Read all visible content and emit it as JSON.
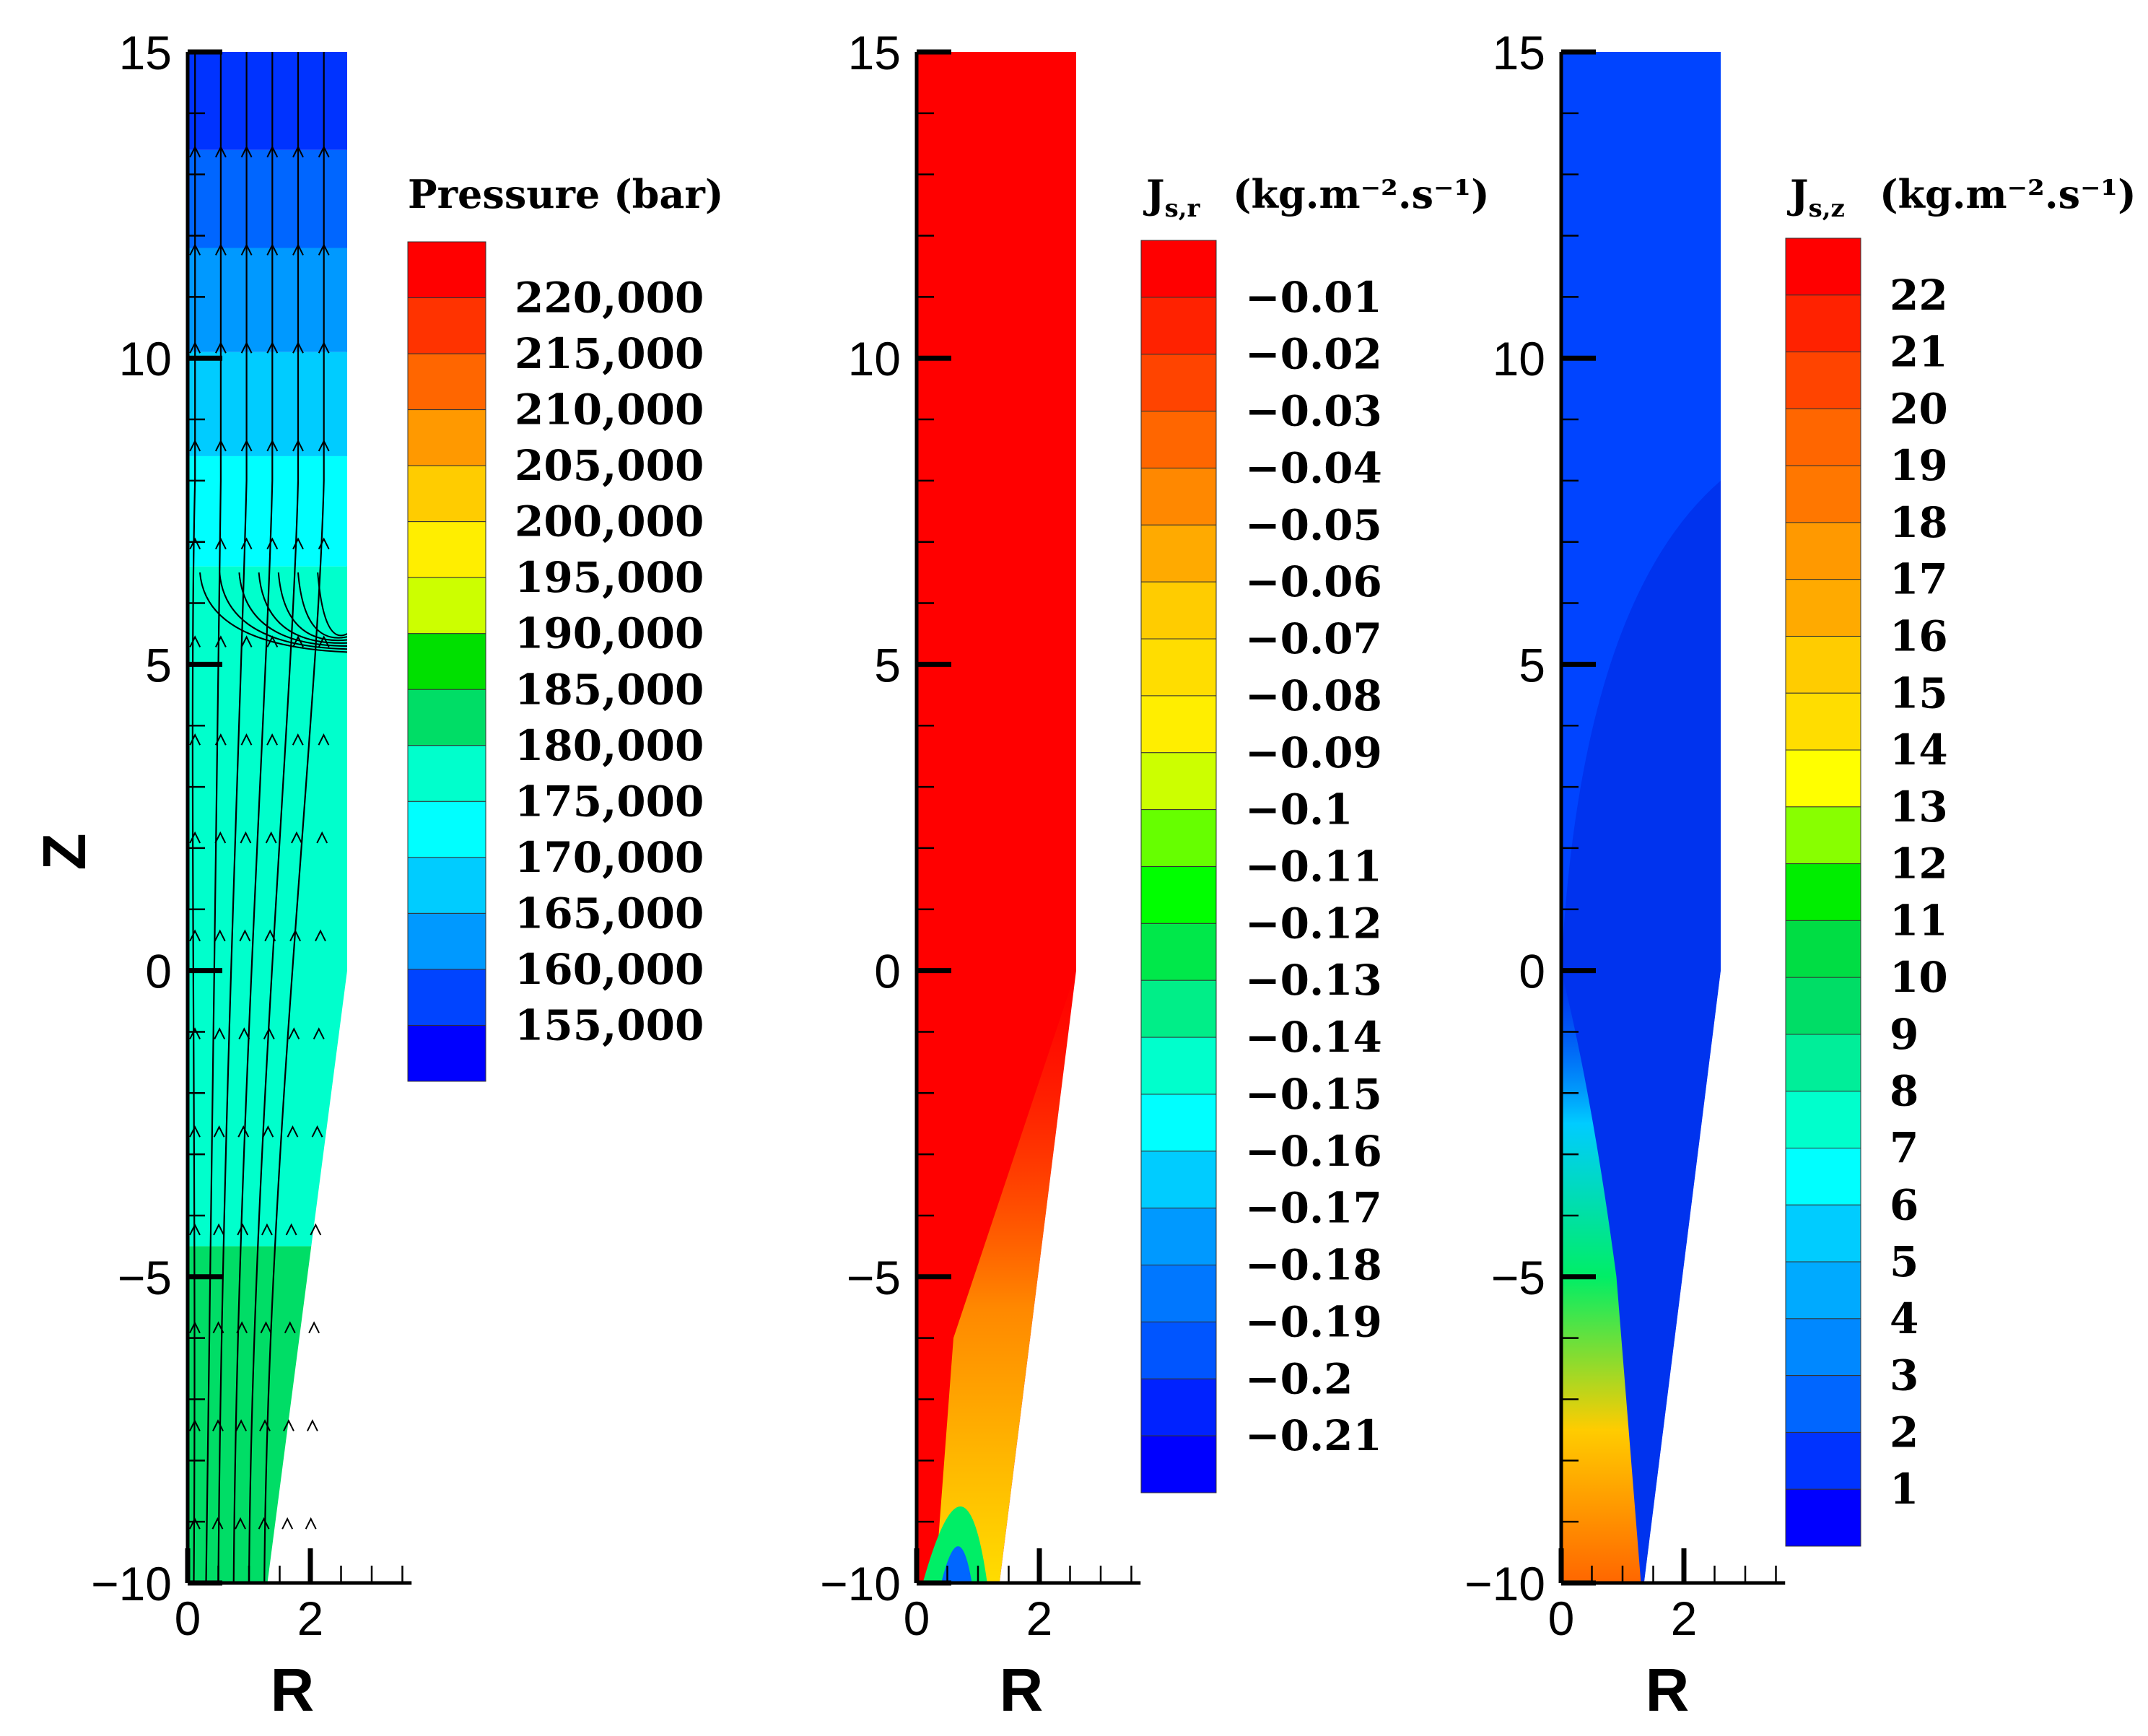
{
  "chart_data": [
    {
      "type": "heatmap",
      "subtype": "contour",
      "title": "Pressure (bar)",
      "xlabel": "R",
      "ylabel": "Z",
      "xlim": [
        0,
        3.5
      ],
      "ylim": [
        -10,
        15
      ],
      "x_ticks": [
        "0",
        "2"
      ],
      "y_ticks": [
        "15",
        "10",
        "5",
        "0",
        "−5",
        "−10"
      ],
      "legend_levels": [
        "220,000",
        "215,000",
        "210,000",
        "205,000",
        "200,000",
        "195,000",
        "190,000",
        "185,000",
        "180,000",
        "175,000",
        "170,000",
        "165,000",
        "160,000",
        "155,000"
      ],
      "legend_colors": [
        "#ff0000",
        "#ff3300",
        "#ff6600",
        "#ff9900",
        "#ffcc00",
        "#ffee00",
        "#ccff00",
        "#00e000",
        "#00dd66",
        "#00ffcc",
        "#00ffff",
        "#00ccff",
        "#0099ff",
        "#0044ff",
        "#0000ff"
      ],
      "bands": [
        {
          "z_from": -10,
          "z_to": -4.5,
          "color": "#00dd66",
          "label_value": "185,000"
        },
        {
          "z_from": -4.5,
          "z_to": 6.6,
          "color": "#00ffcc",
          "label_value": "180,000"
        },
        {
          "z_from": 6.6,
          "z_to": 8.4,
          "color": "#00ffff",
          "label_value": "175,000"
        },
        {
          "z_from": 8.4,
          "z_to": 10.1,
          "color": "#00ccff",
          "label_value": "170,000"
        },
        {
          "z_from": 10.1,
          "z_to": 11.8,
          "color": "#0099ff",
          "label_value": "165,000"
        },
        {
          "z_from": 11.8,
          "z_to": 13.4,
          "color": "#0066ff",
          "label_value": "160,000"
        },
        {
          "z_from": 13.4,
          "z_to": 15,
          "color": "#0033ff",
          "label_value": "155,000"
        }
      ],
      "streamlines": true
    },
    {
      "type": "heatmap",
      "subtype": "contour",
      "title": "J",
      "title_sub": "s,r",
      "title_units": "(kg.m⁻².s⁻¹)",
      "xlabel": "R",
      "ylabel": "",
      "xlim": [
        0,
        3.5
      ],
      "ylim": [
        -10,
        15
      ],
      "x_ticks": [
        "0",
        "2"
      ],
      "y_ticks": [
        "15",
        "10",
        "5",
        "0",
        "−5",
        "−10"
      ],
      "legend_levels": [
        "−0.01",
        "−0.02",
        "−0.03",
        "−0.04",
        "−0.05",
        "−0.06",
        "−0.07",
        "−0.08",
        "−0.09",
        "−0.1",
        "−0.11",
        "−0.12",
        "−0.13",
        "−0.14",
        "−0.15",
        "−0.16",
        "−0.17",
        "−0.18",
        "−0.19",
        "−0.2",
        "−0.21"
      ],
      "legend_colors": [
        "#ff0000",
        "#ff2200",
        "#ff4400",
        "#ff6600",
        "#ff8800",
        "#ffaa00",
        "#ffcc00",
        "#ffdd00",
        "#ffee00",
        "#ccff00",
        "#66ff00",
        "#00ff00",
        "#00e84a",
        "#00ee88",
        "#00ffcc",
        "#00ffff",
        "#00ccff",
        "#0099ff",
        "#0077ff",
        "#0055ff",
        "#0022ff",
        "#0000ff"
      ],
      "dominant_value": "−0.01"
    },
    {
      "type": "heatmap",
      "subtype": "contour",
      "title": "J",
      "title_sub": "s,z",
      "title_units": "(kg.m⁻².s⁻¹)",
      "xlabel": "R",
      "ylabel": "",
      "xlim": [
        0,
        3.5
      ],
      "ylim": [
        -10,
        15
      ],
      "x_ticks": [
        "0",
        "2"
      ],
      "y_ticks": [
        "15",
        "10",
        "5",
        "0",
        "−5",
        "−10"
      ],
      "legend_levels": [
        "22",
        "21",
        "20",
        "19",
        "18",
        "17",
        "16",
        "15",
        "14",
        "13",
        "12",
        "11",
        "10",
        "9",
        "8",
        "7",
        "6",
        "5",
        "4",
        "3",
        "2",
        "1"
      ],
      "legend_colors": [
        "#ff0000",
        "#ff2200",
        "#ff4400",
        "#ff6600",
        "#ff7700",
        "#ff9900",
        "#ffaa00",
        "#ffcc00",
        "#ffdd00",
        "#ffff00",
        "#88ff00",
        "#00ee00",
        "#00dd44",
        "#00dd66",
        "#00ee99",
        "#00ffcc",
        "#00ffff",
        "#00ccff",
        "#00aaff",
        "#0088ff",
        "#0066ff",
        "#0033ff",
        "#0000ff"
      ],
      "dominant_value": "1"
    }
  ]
}
